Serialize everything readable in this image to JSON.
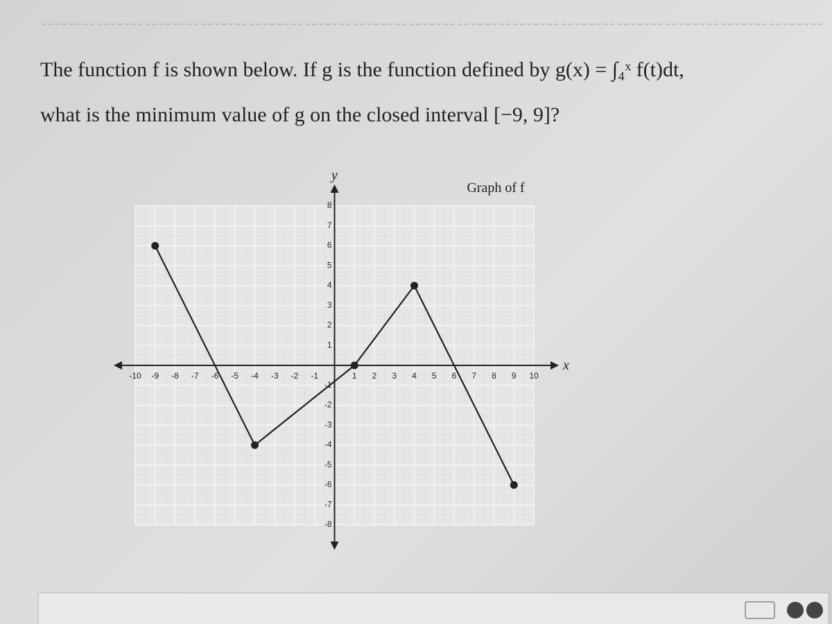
{
  "question": {
    "line1": "The function f is shown below. If g is the function defined by g(x) = ∫₄ˣ f(t)dt,",
    "line2": "what is the minimum value of g on the closed interval [−9, 9]?"
  },
  "chart_data": {
    "type": "line",
    "title": "Graph of f",
    "x_label": "x",
    "y_label": "y",
    "x": [
      -9,
      -4,
      1,
      4,
      9
    ],
    "values": [
      6,
      -4,
      0,
      4,
      -6
    ],
    "color": "#222222",
    "xlim": [
      -10,
      10
    ],
    "ylim": [
      -8,
      8
    ],
    "xticks": [
      -10,
      -9,
      -8,
      -7,
      -6,
      -5,
      -4,
      -3,
      -2,
      -1,
      1,
      2,
      3,
      4,
      5,
      6,
      7,
      8,
      9,
      10
    ],
    "yticks": [
      -8,
      -7,
      -6,
      -5,
      -4,
      -3,
      -2,
      -1,
      1,
      2,
      3,
      4,
      5,
      6,
      7,
      8
    ],
    "grid": true
  }
}
